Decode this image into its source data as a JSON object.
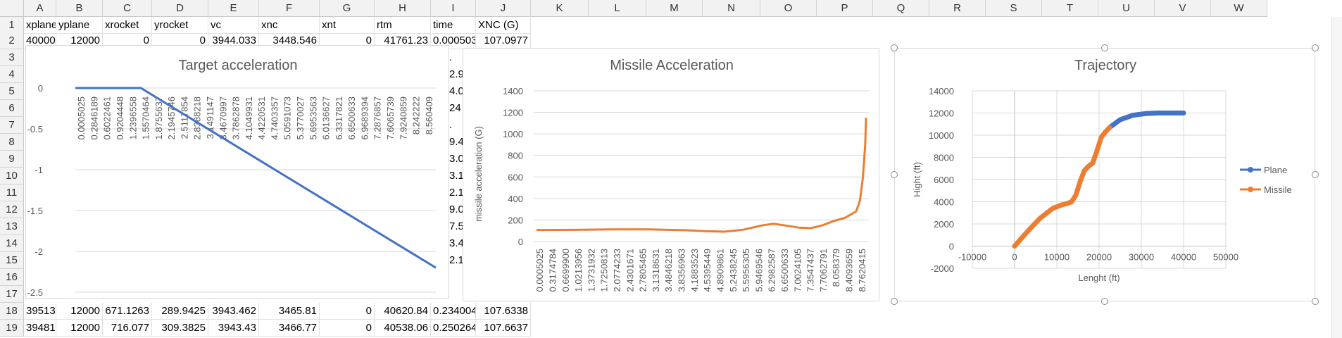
{
  "columns": [
    "A",
    "B",
    "C",
    "D",
    "E",
    "F",
    "G",
    "H",
    "I",
    "J",
    "K",
    "L",
    "M",
    "N",
    "O",
    "P",
    "Q",
    "R",
    "S",
    "T",
    "U",
    "V",
    "W"
  ],
  "rows": [
    "1",
    "2",
    "3",
    "4",
    "5",
    "6",
    "7",
    "8",
    "9",
    "10",
    "11",
    "12",
    "13",
    "14",
    "15",
    "16",
    "17",
    "18",
    "19"
  ],
  "header_row": [
    "xplane",
    "yplane",
    "xrocket",
    "yrocket",
    "vc",
    "xnc",
    "xnt",
    "rtm",
    "time",
    "XNC (G)"
  ],
  "row2": [
    "40000",
    "12000",
    "0",
    "0",
    "3944.033",
    "3448.546",
    "0",
    "41761.23",
    "0.000503",
    "107.0977"
  ],
  "row18": [
    "39513.61",
    "12000",
    "671.1263",
    "289.9425",
    "3943.462",
    "3465.81",
    "0",
    "40620.84",
    "0.234004",
    "107.6338"
  ],
  "row19": [
    "39481.03",
    "12000",
    "716.077",
    "309.3825",
    "3943.43",
    "3466.77",
    "0",
    "40538.06",
    "0.250264",
    "107.6637"
  ],
  "hidden_fragments": [
    ".",
    "2.9",
    "4.0",
    "24",
    ".",
    "9.4",
    "3.0",
    "3.1",
    "2.1",
    "9.0",
    "7.5",
    "3.4",
    "2.1"
  ],
  "charts": [
    {
      "name": "target-acceleration",
      "title": "Target acceleration",
      "y_ticks": [
        "0",
        "-0.5",
        "-1",
        "-1.5",
        "-2",
        "-2.5"
      ],
      "x_ticks": [
        "0.0005025",
        "0.2846189",
        "0.6022461",
        "0.9204448",
        "1.2396558",
        "1.5570464",
        "1.8755637",
        "2.1945746",
        "2.5117854",
        "2.8388218",
        "3.1491147",
        "3.4670997",
        "3.7862878",
        "4.1049931",
        "4.4220531",
        "4.7403357",
        "5.0591073",
        "5.3770027",
        "5.6953563",
        "6.0136627",
        "6.3317821",
        "6.6500633",
        "6.9689394",
        "7.2876857",
        "7.6065739",
        "7.9240859",
        "8.242222",
        "8.560409"
      ]
    },
    {
      "name": "missile-acceleration",
      "title": "Missile Acceleration",
      "ylabel": "missile acceleration (G)",
      "y_ticks": [
        "1400",
        "1200",
        "1000",
        "800",
        "600",
        "400",
        "200",
        "0"
      ],
      "x_ticks": [
        "0.0005025",
        "0.3174784",
        "0.6699900",
        "1.0213956",
        "1.3731932",
        "1.7250813",
        "2.0774233",
        "2.4301671",
        "2.7805465",
        "3.1318631",
        "3.4846218",
        "3.8356963",
        "4.1883523",
        "4.5395449",
        "4.8909861",
        "5.2438245",
        "5.5956305",
        "5.9469546",
        "6.2982587",
        "6.6500633",
        "7.0024105",
        "7.3547437",
        "7.7062791",
        "8.058379",
        "8.4093659",
        "8.7620415"
      ]
    },
    {
      "name": "trajectory",
      "title": "Trajectory",
      "xlabel": "Lenght (ft)",
      "ylabel": "Hight (ft)",
      "y_ticks": [
        "14000",
        "12000",
        "10000",
        "8000",
        "6000",
        "4000",
        "2000",
        "0",
        "-2000"
      ],
      "x_ticks": [
        "-10000",
        "0",
        "10000",
        "20000",
        "30000",
        "40000",
        "50000"
      ],
      "legend": [
        "Plane",
        "Missile"
      ]
    }
  ],
  "colors": {
    "blue": "#4472c4",
    "orange": "#ed7d31"
  },
  "chart_data": [
    {
      "type": "line",
      "title": "Target acceleration",
      "x": [
        0.0005025,
        1.5570464,
        8.560409
      ],
      "series": [
        {
          "values": [
            0,
            0,
            -2.2
          ]
        }
      ],
      "ylim": [
        -2.5,
        0
      ]
    },
    {
      "type": "line",
      "title": "Missile Acceleration",
      "ylabel": "missile acceleration (G)",
      "x": [
        0.0005,
        1.0,
        2.0,
        3.0,
        4.0,
        4.5,
        5.0,
        5.5,
        6.0,
        6.3,
        6.6,
        7.0,
        7.3,
        7.6,
        7.9,
        8.2,
        8.5,
        8.6,
        8.68,
        8.74,
        8.762
      ],
      "series": [
        {
          "values": [
            107,
            109,
            113,
            113,
            105,
            96,
            92,
            110,
            150,
            165,
            150,
            128,
            125,
            150,
            190,
            220,
            280,
            380,
            600,
            900,
            1150
          ]
        }
      ],
      "ylim": [
        0,
        1400
      ]
    },
    {
      "type": "line",
      "title": "Trajectory",
      "xlabel": "Lenght (ft)",
      "ylabel": "Hight (ft)",
      "xlim": [
        -10000,
        50000
      ],
      "ylim": [
        -2000,
        14000
      ],
      "legend_position": "right",
      "series": [
        {
          "name": "Plane",
          "x": [
            22500,
            25000,
            28000,
            31000,
            34000,
            37000,
            40000
          ],
          "y": [
            10700,
            11400,
            11800,
            11950,
            12000,
            12000,
            12000
          ]
        },
        {
          "name": "Missile",
          "x": [
            0,
            3000,
            6000,
            9000,
            11000,
            12500,
            13500,
            14500,
            15500,
            16500,
            17500,
            18500,
            19500,
            20500,
            21500,
            22500
          ],
          "y": [
            0,
            1300,
            2500,
            3400,
            3700,
            3850,
            4000,
            4600,
            5800,
            6800,
            7200,
            7500,
            8600,
            9800,
            10300,
            10700
          ]
        }
      ]
    }
  ]
}
